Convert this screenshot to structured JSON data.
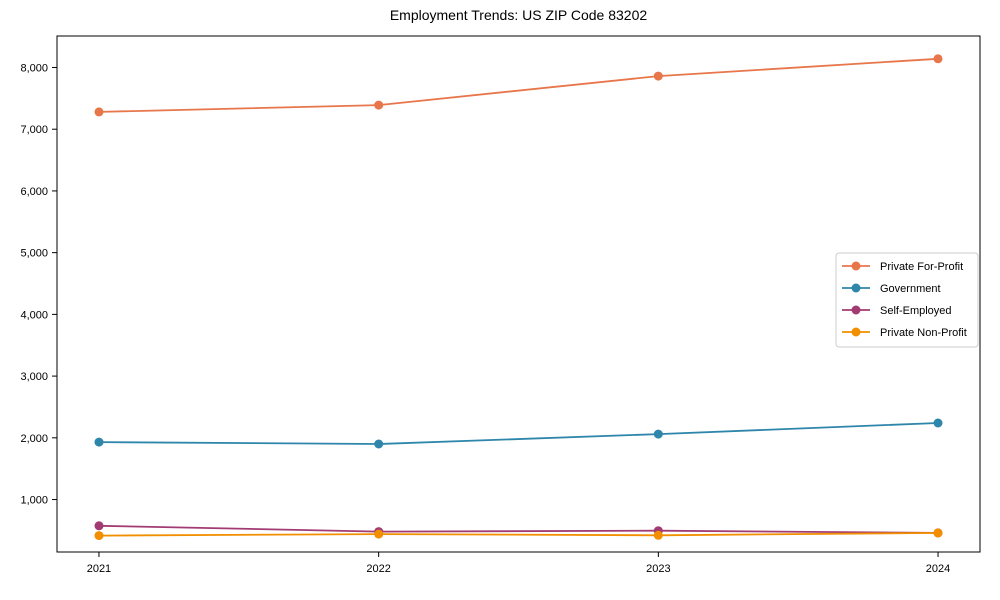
{
  "chart_data": {
    "type": "line",
    "title": "Employment Trends: US ZIP Code 83202",
    "xlabel": "",
    "ylabel": "",
    "x": [
      2021,
      2022,
      2023,
      2024
    ],
    "x_tick_labels": [
      "2021",
      "2022",
      "2023",
      "2024"
    ],
    "y_ticks": [
      1000,
      2000,
      3000,
      4000,
      5000,
      6000,
      7000,
      8000
    ],
    "y_tick_labels": [
      "1,000",
      "2,000",
      "3,000",
      "4,000",
      "5,000",
      "6,000",
      "7,000",
      "8,000"
    ],
    "xlim": [
      2020.85,
      2024.15
    ],
    "ylim": [
      150,
      8510
    ],
    "grid": false,
    "legend_position": "center right",
    "series": [
      {
        "name": "Private For-Profit",
        "color": "#E8764B",
        "values": [
          7280,
          7390,
          7860,
          8140
        ]
      },
      {
        "name": "Government",
        "color": "#2E86AB",
        "values": [
          1930,
          1900,
          2060,
          2240
        ]
      },
      {
        "name": "Self-Employed",
        "color": "#A23B72",
        "values": [
          575,
          480,
          495,
          460
        ]
      },
      {
        "name": "Private Non-Profit",
        "color": "#F18F01",
        "values": [
          415,
          440,
          420,
          460
        ]
      }
    ],
    "style": {
      "frame_color": "#000000",
      "tick_label_color": "#000000",
      "legend_border_color": "#cccccc",
      "legend_bg_color": "#ffffff",
      "background_color": "#ffffff"
    }
  }
}
